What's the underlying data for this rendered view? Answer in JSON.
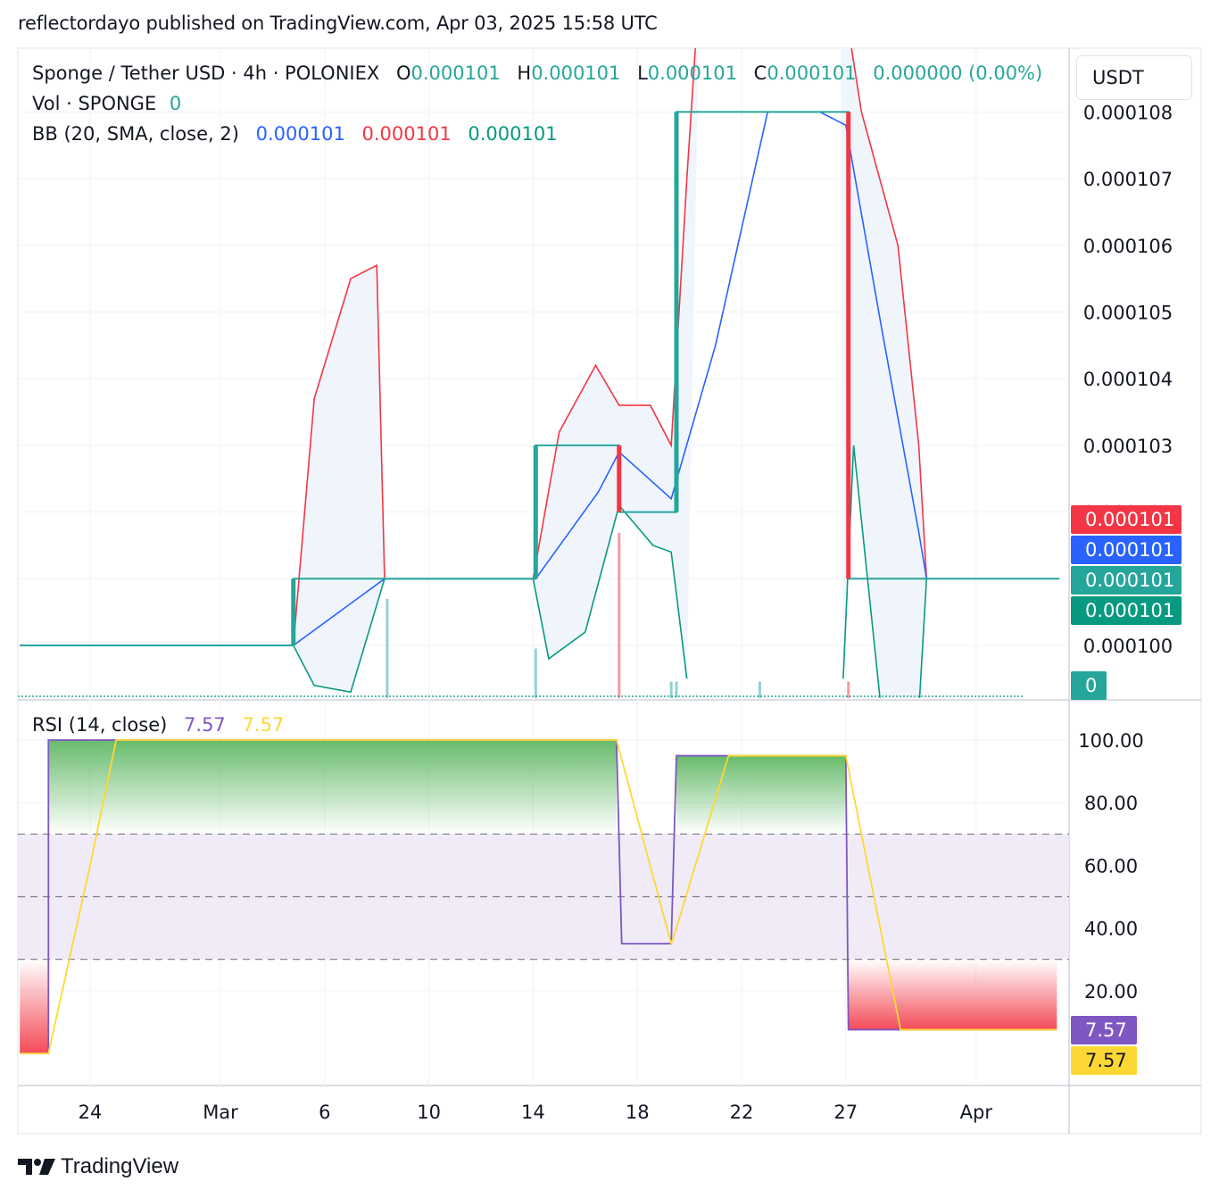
{
  "header": {
    "text": "reflectordayo published on TradingView.com, Apr 03, 2025 15:58 UTC"
  },
  "legend": {
    "symbol": "Sponge / Tether USD · 4h · POLONIEX",
    "o_label": "O",
    "o_value": "0.000101",
    "h_label": "H",
    "h_value": "0.000101",
    "l_label": "L",
    "l_value": "0.000101",
    "c_label": "C",
    "c_value": "0.000101",
    "change": "0.000000 (0.00%)",
    "vol_label": "Vol · SPONGE",
    "vol_value": "0",
    "bb_label": "BB (20, SMA, close, 2)",
    "bb_basis": "0.000101",
    "bb_upper": "0.000101",
    "bb_lower": "0.000101",
    "rsi_label": "RSI (14, close)",
    "rsi_value": "7.57",
    "rsi_ma_value": "7.57"
  },
  "currency": "USDT",
  "price_tags": [
    {
      "text": "0.000101",
      "color": "#f23645"
    },
    {
      "text": "0.000101",
      "color": "#2962ff"
    },
    {
      "text": "0.000101",
      "color": "#26a69a"
    },
    {
      "text": "0.000101",
      "color": "#089981"
    },
    {
      "text": "0",
      "color": "#26a69a"
    }
  ],
  "rsi_tags": [
    {
      "text": "7.57",
      "color": "#7e57c2",
      "text_color": "#ffffff"
    },
    {
      "text": "7.57",
      "color": "#fdd835",
      "text_color": "#131722"
    }
  ],
  "footer": {
    "brand": "TradingView"
  },
  "colors": {
    "up": "#26a69a",
    "down": "#f23645",
    "bb_basis": "#2962ff",
    "bb_upper": "#f23645",
    "bb_lower": "#089981",
    "bb_fill": "#f0f5fc",
    "rsi": "#7e57c2",
    "rsi_ma": "#fdd835",
    "rsi_band": "#ede7f6"
  },
  "chart_data": [
    {
      "type": "candlestick",
      "title": "Sponge / Tether USD · 4h · POLONIEX",
      "y_ticks": [
        "0.000100",
        "0.000101",
        "0.000102",
        "0.000103",
        "0.000104",
        "0.000105",
        "0.000106",
        "0.000107",
        "0.000108"
      ],
      "y_tick_values": [
        0.0001,
        0.000101,
        0.000102,
        0.000103,
        0.000104,
        0.000105,
        0.000106,
        0.000107,
        0.000108
      ],
      "x_ticks": [
        "24",
        "Mar",
        "6",
        "10",
        "14",
        "18",
        "22",
        "27",
        "Apr"
      ],
      "x_tick_days": [
        0,
        5,
        9,
        13,
        17,
        21,
        25,
        29,
        34
      ],
      "x_tick_labels_shown": [
        0,
        1,
        2,
        3,
        4,
        5,
        6,
        7,
        8
      ],
      "price_line": [
        {
          "day": -2.7,
          "price": 0.0001
        },
        {
          "day": 7.8,
          "price": 0.0001
        },
        {
          "day": 7.8,
          "price": 0.000101
        },
        {
          "day": 17.1,
          "price": 0.000101
        },
        {
          "day": 17.1,
          "price": 0.000103
        },
        {
          "day": 20.3,
          "price": 0.000103
        },
        {
          "day": 20.3,
          "price": 0.000102
        },
        {
          "day": 22.5,
          "price": 0.000102
        },
        {
          "day": 22.5,
          "price": 0.000108
        },
        {
          "day": 29.1,
          "price": 0.000108
        },
        {
          "day": 29.1,
          "price": 0.000101
        },
        {
          "day": 37.2,
          "price": 0.000101
        }
      ],
      "bb_basis": [
        {
          "day": 7.8,
          "price": 0.0001
        },
        {
          "day": 11.3,
          "price": 0.000101
        },
        {
          "day": 17.1,
          "price": 0.000101
        },
        {
          "day": 19.5,
          "price": 0.0001023
        },
        {
          "day": 20.3,
          "price": 0.0001029
        },
        {
          "day": 22.3,
          "price": 0.0001022
        },
        {
          "day": 24.0,
          "price": 0.0001045
        },
        {
          "day": 26.0,
          "price": 0.000108
        },
        {
          "day": 28.0,
          "price": 0.000108
        },
        {
          "day": 29.0,
          "price": 0.0001078
        },
        {
          "day": 30.4,
          "price": 0.0001047
        },
        {
          "day": 31.8,
          "price": 0.0001017
        },
        {
          "day": 32.1,
          "price": 0.000101
        }
      ],
      "bb_upper": [
        {
          "day": 7.8,
          "price": 0.0001
        },
        {
          "day": 8.6,
          "price": 0.0001037
        },
        {
          "day": 10.0,
          "price": 0.0001055
        },
        {
          "day": 11.0,
          "price": 0.0001057
        },
        {
          "day": 11.3,
          "price": 0.000101
        },
        {
          "day": 17.0,
          "price": 0.000101
        },
        {
          "day": 18.0,
          "price": 0.0001032
        },
        {
          "day": 19.4,
          "price": 0.0001042
        },
        {
          "day": 20.3,
          "price": 0.0001036
        },
        {
          "day": 21.5,
          "price": 0.0001036
        },
        {
          "day": 22.3,
          "price": 0.000103
        },
        {
          "day": 22.9,
          "price": 0.000107
        },
        {
          "day": 23.4,
          "price": 0.00011
        }
      ],
      "bb_lower": [
        {
          "day": 7.8,
          "price": 0.0001
        },
        {
          "day": 8.6,
          "price": 9.94e-05
        },
        {
          "day": 10.0,
          "price": 9.93e-05
        },
        {
          "day": 11.3,
          "price": 0.000101
        },
        {
          "day": 17.0,
          "price": 0.000101
        },
        {
          "day": 17.6,
          "price": 9.98e-05
        },
        {
          "day": 19.0,
          "price": 0.0001002
        },
        {
          "day": 20.3,
          "price": 0.0001021
        },
        {
          "day": 21.6,
          "price": 0.0001015
        },
        {
          "day": 22.3,
          "price": 0.0001014
        },
        {
          "day": 22.9,
          "price": 9.95e-05
        }
      ],
      "volume_bars": [
        {
          "day": 11.4,
          "height": 0.6,
          "dir": "up"
        },
        {
          "day": 17.1,
          "height": 0.3,
          "dir": "up"
        },
        {
          "day": 20.3,
          "height": 1.0,
          "dir": "down"
        },
        {
          "day": 22.3,
          "height": 0.1,
          "dir": "up"
        },
        {
          "day": 22.5,
          "height": 0.1,
          "dir": "up"
        },
        {
          "day": 25.7,
          "height": 0.1,
          "dir": "up"
        },
        {
          "day": 29.1,
          "height": 0.1,
          "dir": "down"
        }
      ],
      "last_price": "0.000101"
    },
    {
      "type": "line",
      "title": "RSI (14, close)",
      "y_ticks": [
        "20.00",
        "40.00",
        "60.00",
        "80.00",
        "100.00"
      ],
      "y_tick_values": [
        20,
        40,
        60,
        80,
        100
      ],
      "bands": {
        "upper": 70,
        "middle": 50,
        "lower": 30
      },
      "series": [
        {
          "name": "RSI",
          "points": [
            {
              "day": -2.7,
              "value": 0
            },
            {
              "day": -1.6,
              "value": 0
            },
            {
              "day": -1.6,
              "value": 100
            },
            {
              "day": 20.2,
              "value": 100
            },
            {
              "day": 20.4,
              "value": 35
            },
            {
              "day": 22.3,
              "value": 35
            },
            {
              "day": 22.5,
              "value": 95
            },
            {
              "day": 29.0,
              "value": 95
            },
            {
              "day": 29.1,
              "value": 7.57
            },
            {
              "day": 37.1,
              "value": 7.57
            }
          ]
        },
        {
          "name": "RSI-based MA",
          "points": [
            {
              "day": -2.7,
              "value": 0
            },
            {
              "day": -1.6,
              "value": 0
            },
            {
              "day": 0.0,
              "value": 60
            },
            {
              "day": 1.0,
              "value": 100
            },
            {
              "day": 20.2,
              "value": 100
            },
            {
              "day": 22.3,
              "value": 35
            },
            {
              "day": 22.5,
              "value": 40
            },
            {
              "day": 24.5,
              "value": 95
            },
            {
              "day": 29.0,
              "value": 95
            },
            {
              "day": 31.1,
              "value": 7.57
            },
            {
              "day": 37.1,
              "value": 7.57
            }
          ]
        }
      ],
      "last_value": "7.57"
    }
  ]
}
